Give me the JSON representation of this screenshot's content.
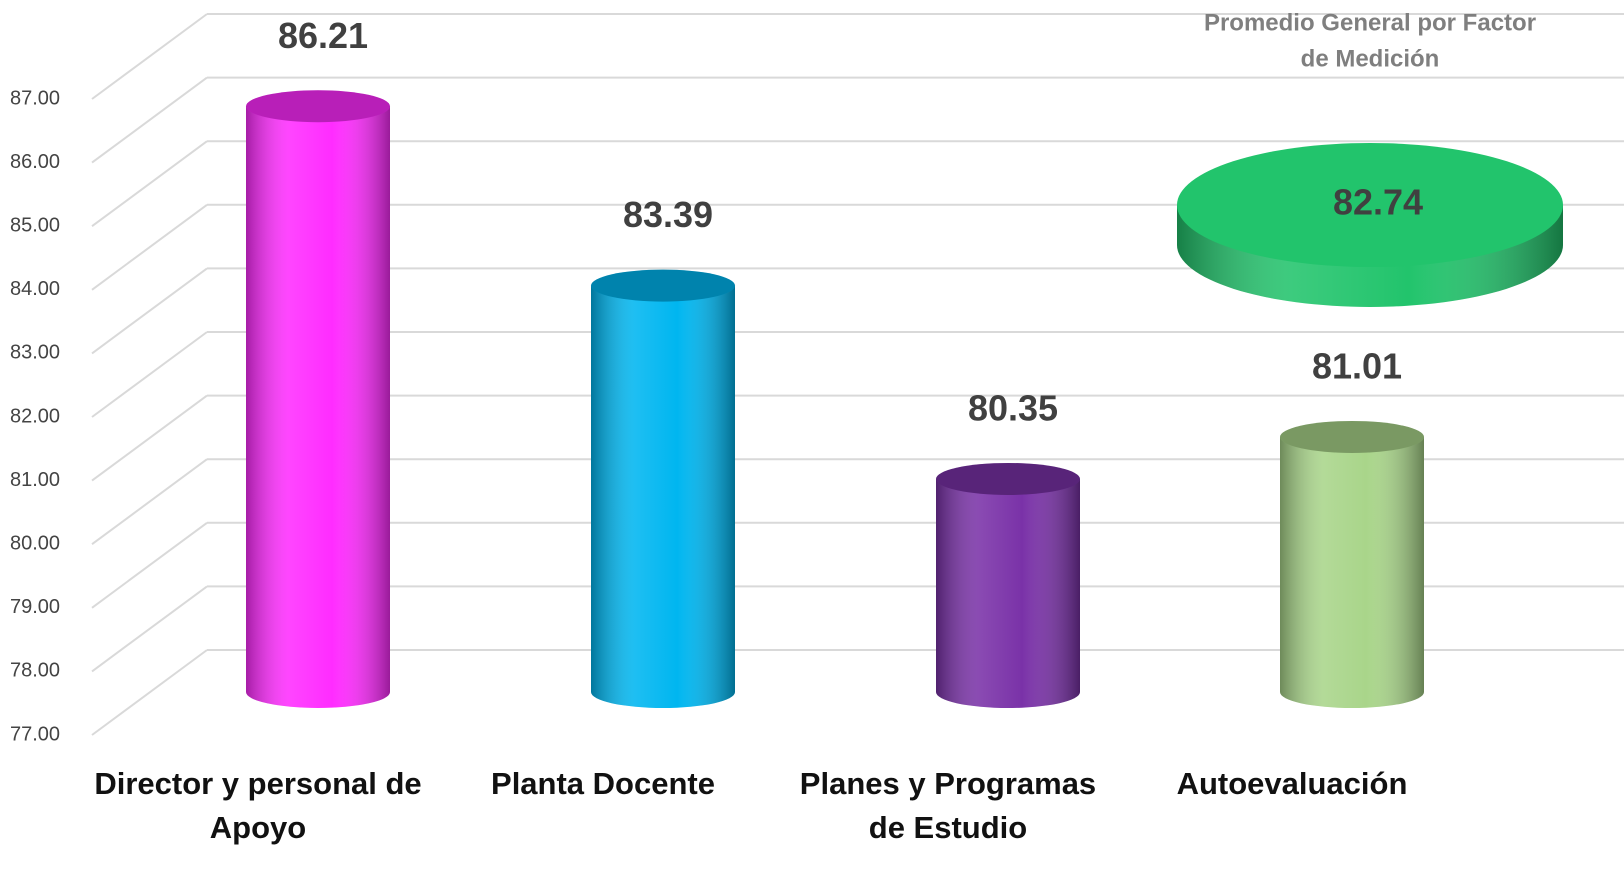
{
  "chart_data": {
    "type": "bar",
    "categories": [
      "Director y personal de Apoyo",
      "Planta Docente",
      "Planes y Programas de Estudio",
      "Autoevaluación"
    ],
    "values": [
      86.21,
      83.39,
      80.35,
      81.01
    ],
    "colors": [
      "#ff2cff",
      "#00b6f0",
      "#7a32a8",
      "#a9d58a"
    ],
    "ylim": [
      77,
      87
    ],
    "yticks": [
      {
        "value": 77,
        "label": "77.00"
      },
      {
        "value": 78,
        "label": "78.00"
      },
      {
        "value": 79,
        "label": "79.00"
      },
      {
        "value": 80,
        "label": "80.00"
      },
      {
        "value": 81,
        "label": "81.00"
      },
      {
        "value": 82,
        "label": "82.00"
      },
      {
        "value": 83,
        "label": "83.00"
      },
      {
        "value": 84,
        "label": "84.00"
      },
      {
        "value": 85,
        "label": "85.00"
      },
      {
        "value": 86,
        "label": "86.00"
      },
      {
        "value": 87,
        "label": "87.00"
      }
    ],
    "grid": true,
    "average": {
      "title": [
        "Promedio General por Factor",
        "de Medición"
      ],
      "value": 82.74,
      "color": "#22c46c"
    }
  }
}
